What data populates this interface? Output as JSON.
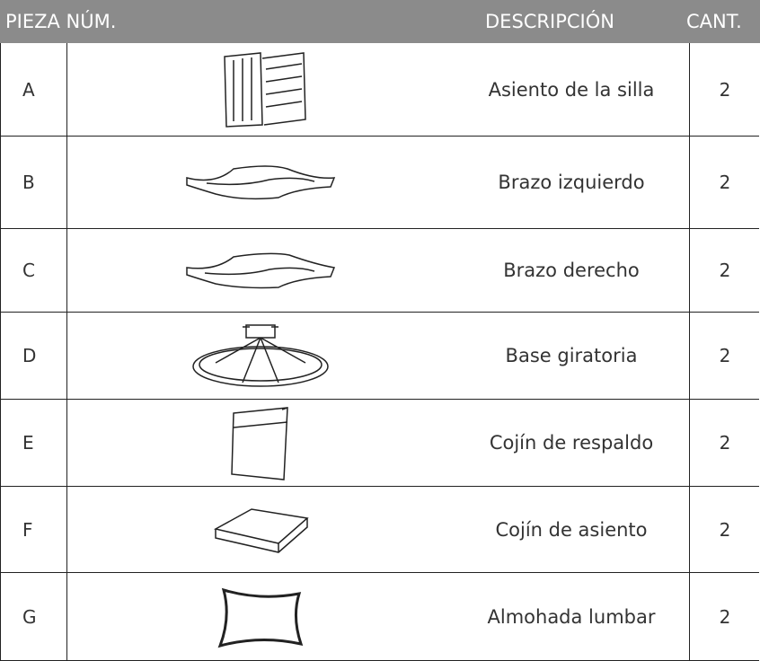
{
  "header": {
    "part": "PIEZA NÚM.",
    "description": "DESCRIPCIÓN",
    "quantity": "CANT."
  },
  "rows": [
    {
      "part": "A",
      "description": "Asiento de la silla",
      "quantity": 2
    },
    {
      "part": "B",
      "description": "Brazo izquierdo",
      "quantity": 2
    },
    {
      "part": "C",
      "description": "Brazo derecho",
      "quantity": 2
    },
    {
      "part": "D",
      "description": "Base giratoria",
      "quantity": 2
    },
    {
      "part": "E",
      "description": "Cojín de respaldo",
      "quantity": 2
    },
    {
      "part": "F",
      "description": "Cojín de asiento",
      "quantity": 2
    },
    {
      "part": "G",
      "description": "Almohada lumbar",
      "quantity": 2
    }
  ]
}
